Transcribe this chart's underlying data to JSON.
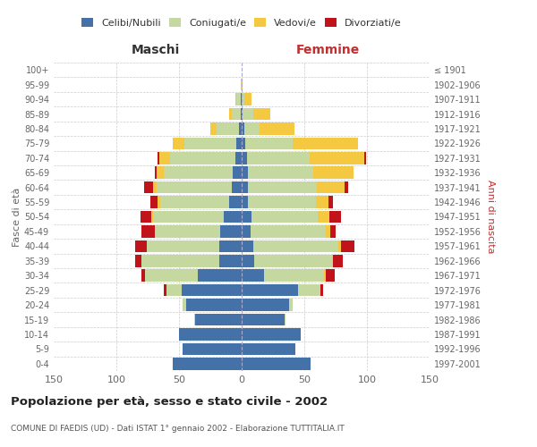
{
  "age_groups": [
    "0-4",
    "5-9",
    "10-14",
    "15-19",
    "20-24",
    "25-29",
    "30-34",
    "35-39",
    "40-44",
    "45-49",
    "50-54",
    "55-59",
    "60-64",
    "65-69",
    "70-74",
    "75-79",
    "80-84",
    "85-89",
    "90-94",
    "95-99",
    "100+"
  ],
  "birth_years": [
    "1997-2001",
    "1992-1996",
    "1987-1991",
    "1982-1986",
    "1977-1981",
    "1972-1976",
    "1967-1971",
    "1962-1966",
    "1957-1961",
    "1952-1956",
    "1947-1951",
    "1942-1946",
    "1937-1941",
    "1932-1936",
    "1927-1931",
    "1922-1926",
    "1917-1921",
    "1912-1916",
    "1907-1911",
    "1902-1906",
    "≤ 1901"
  ],
  "male_celibi": [
    55,
    47,
    50,
    37,
    44,
    48,
    35,
    18,
    18,
    17,
    14,
    10,
    8,
    7,
    5,
    4,
    2,
    1,
    1,
    0,
    0
  ],
  "male_coniugati": [
    0,
    0,
    0,
    1,
    3,
    12,
    42,
    62,
    58,
    52,
    57,
    55,
    60,
    55,
    52,
    42,
    18,
    7,
    3,
    1,
    0
  ],
  "male_vedovi": [
    0,
    0,
    0,
    0,
    0,
    0,
    0,
    0,
    0,
    0,
    1,
    2,
    3,
    6,
    9,
    9,
    5,
    2,
    1,
    0,
    0
  ],
  "male_divorziati": [
    0,
    0,
    0,
    0,
    0,
    2,
    3,
    5,
    9,
    11,
    9,
    6,
    7,
    1,
    1,
    0,
    0,
    0,
    0,
    0,
    0
  ],
  "fem_nubili": [
    55,
    43,
    47,
    34,
    38,
    45,
    18,
    10,
    9,
    7,
    8,
    5,
    5,
    5,
    4,
    3,
    2,
    1,
    0,
    0,
    0
  ],
  "fem_coniugate": [
    0,
    0,
    0,
    1,
    3,
    18,
    48,
    62,
    68,
    60,
    53,
    54,
    55,
    52,
    50,
    38,
    12,
    8,
    2,
    0,
    0
  ],
  "fem_vedove": [
    0,
    0,
    0,
    0,
    0,
    0,
    1,
    1,
    2,
    4,
    9,
    10,
    22,
    32,
    44,
    52,
    28,
    14,
    6,
    1,
    0
  ],
  "fem_divorziate": [
    0,
    0,
    0,
    0,
    0,
    2,
    7,
    8,
    11,
    4,
    9,
    4,
    3,
    0,
    1,
    0,
    0,
    0,
    0,
    0,
    0
  ],
  "color_celibi": "#4472a8",
  "color_coniugati": "#c5d8a0",
  "color_vedovi": "#f5c842",
  "color_divorziati": "#c0141a",
  "title": "Popolazione per età, sesso e stato civile - 2002",
  "subtitle": "COMUNE DI FAEDIS (UD) - Dati ISTAT 1° gennaio 2002 - Elaborazione TUTTITALIA.IT",
  "xlim": 150
}
